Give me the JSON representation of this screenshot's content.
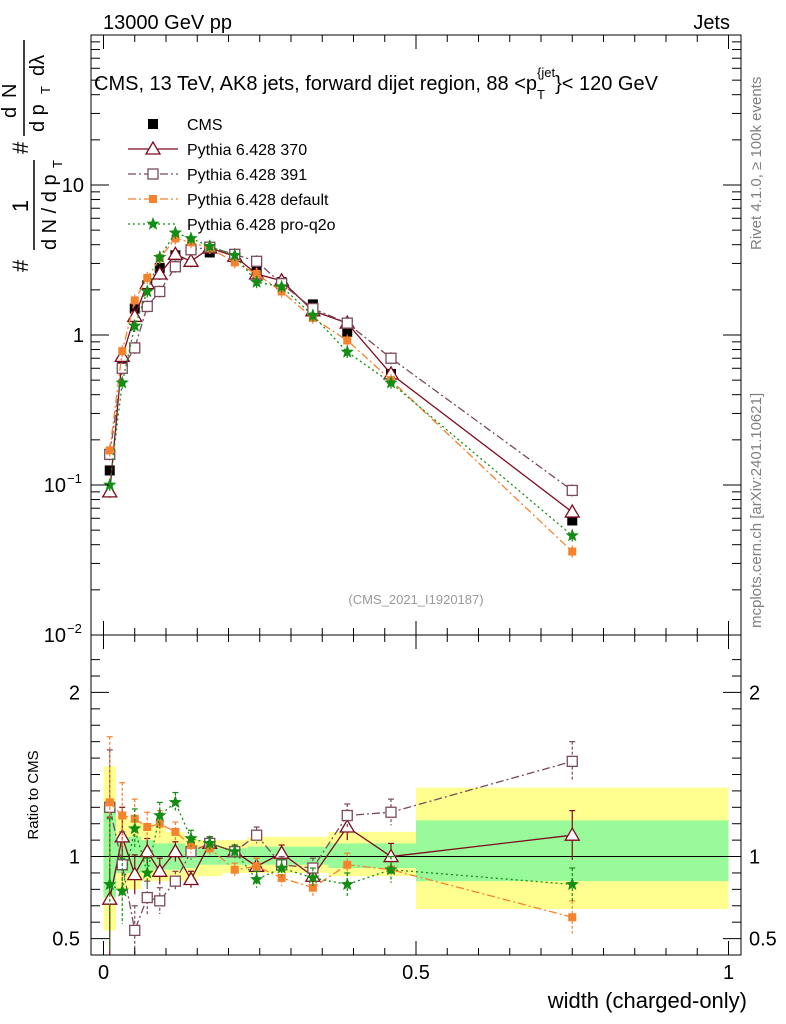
{
  "header": {
    "left": "13000 GeV pp",
    "right": "Jets"
  },
  "side_labels": {
    "rivet": "Rivet 4.1.0, ≥ 100k events",
    "mcplots": "mcplots.cern.ch [arXiv:2401.10621]"
  },
  "chart_data": {
    "type": "line",
    "title": "CMS, 13 TeV, AK8 jets, forward dijet region, 88 <p_T^{jet}< 120 GeV",
    "title_parts": {
      "prefix": "CMS, 13 TeV, AK8 jets, forward dijet region, 88 <p",
      "sub": "T",
      "sup": "{jet",
      "suffix": "}< 120 GeV"
    },
    "analysis_id": "(CMS_2021_I1920187)",
    "xlabel": "width (charged-only)",
    "ylabel_main": "1/dN/dpT  d²N/dpT dλ",
    "ylabel_parts": {
      "top_num": "1",
      "bottom": "d N / d p",
      "sub_T": "T",
      "d2N": "d",
      "N": "N",
      "dpT": "d p",
      "dl": "dλ",
      "hash": "#"
    },
    "ylabel_ratio": "Ratio to CMS",
    "xlim": [
      -0.02,
      1.02
    ],
    "ylim_main": [
      0.01,
      100
    ],
    "ylim_ratio": [
      0.4,
      2.35
    ],
    "x_ticks": [
      "0",
      "0.5",
      "1"
    ],
    "x_tick_values": [
      0,
      0.5,
      1
    ],
    "y_ticks_main": [
      {
        "value": 10,
        "label": "10"
      },
      {
        "value": 1,
        "label": "1"
      },
      {
        "value": 0.1,
        "label": "10",
        "exp": "−1"
      },
      {
        "value": 0.01,
        "label": "10",
        "exp": "−2"
      }
    ],
    "y_ticks_ratio": [
      {
        "value": 2,
        "label": "2"
      },
      {
        "value": 1,
        "label": "1"
      },
      {
        "value": 0.5,
        "label": "0.5"
      }
    ],
    "x_bins": [
      0.0,
      0.02,
      0.04,
      0.06,
      0.08,
      0.1,
      0.13,
      0.15,
      0.19,
      0.23,
      0.26,
      0.31,
      0.36,
      0.42,
      0.5,
      1.0
    ],
    "x_centers": [
      0.01,
      0.03,
      0.05,
      0.07,
      0.09,
      0.115,
      0.14,
      0.17,
      0.21,
      0.245,
      0.285,
      0.335,
      0.39,
      0.46,
      0.75
    ],
    "band_outer": [
      [
        0.55,
        1.55
      ],
      [
        0.8,
        1.25
      ],
      [
        0.8,
        1.22
      ],
      [
        0.85,
        1.2
      ],
      [
        0.85,
        1.18
      ],
      [
        0.85,
        1.15
      ],
      [
        0.85,
        1.12
      ],
      [
        0.88,
        1.1
      ],
      [
        0.9,
        1.1
      ],
      [
        0.9,
        1.12
      ],
      [
        0.9,
        1.12
      ],
      [
        0.9,
        1.12
      ],
      [
        0.88,
        1.15
      ],
      [
        0.88,
        1.15
      ],
      [
        0.68,
        1.42
      ]
    ],
    "band_inner": [
      [
        0.75,
        1.3
      ],
      [
        0.9,
        1.12
      ],
      [
        0.9,
        1.12
      ],
      [
        0.92,
        1.1
      ],
      [
        0.92,
        1.08
      ],
      [
        0.92,
        1.08
      ],
      [
        0.93,
        1.07
      ],
      [
        0.95,
        1.05
      ],
      [
        0.95,
        1.05
      ],
      [
        0.95,
        1.06
      ],
      [
        0.95,
        1.06
      ],
      [
        0.95,
        1.06
      ],
      [
        0.93,
        1.08
      ],
      [
        0.93,
        1.08
      ],
      [
        0.85,
        1.22
      ]
    ],
    "series": [
      {
        "name": "CMS",
        "color": "#000000",
        "marker": "square-filled",
        "line": "none",
        "values": [
          0.125,
          0.65,
          1.5,
          2.15,
          2.8,
          3.4,
          3.7,
          3.55,
          3.3,
          2.7,
          2.25,
          1.6,
          1.05,
          0.55,
          0.058
        ]
      },
      {
        "name": "Pythia 6.428 370",
        "color": "#7f0a1e",
        "marker": "triangle-open",
        "line": "solid",
        "values": [
          0.09,
          0.72,
          1.33,
          2.2,
          2.55,
          3.45,
          3.1,
          3.8,
          3.35,
          2.55,
          2.3,
          1.45,
          1.2,
          0.55,
          0.066
        ],
        "ratio": [
          0.74,
          1.12,
          0.89,
          1.03,
          0.91,
          1.03,
          0.86,
          1.08,
          1.03,
          0.94,
          1.02,
          0.88,
          1.18,
          1.0,
          1.13
        ],
        "ratio_err": [
          0.5,
          0.18,
          0.12,
          0.08,
          0.08,
          0.06,
          0.05,
          0.04,
          0.04,
          0.05,
          0.05,
          0.06,
          0.08,
          0.08,
          0.15
        ]
      },
      {
        "name": "Pythia 6.428 391",
        "color": "#7a4a5a",
        "marker": "square-open",
        "line": "dash-dot",
        "values": [
          0.16,
          0.6,
          0.82,
          1.55,
          1.95,
          2.85,
          3.7,
          3.85,
          3.45,
          3.1,
          2.2,
          1.5,
          1.2,
          0.7,
          0.092
        ],
        "ratio": [
          1.3,
          0.95,
          0.55,
          0.75,
          0.73,
          0.85,
          1.03,
          1.08,
          1.03,
          1.13,
          0.95,
          0.93,
          1.25,
          1.27,
          1.58
        ],
        "ratio_err": [
          0.35,
          0.2,
          0.15,
          0.1,
          0.08,
          0.06,
          0.05,
          0.04,
          0.04,
          0.05,
          0.05,
          0.06,
          0.07,
          0.08,
          0.12
        ]
      },
      {
        "name": "Pythia 6.428 default",
        "color": "#f5822d",
        "marker": "square-filled-small",
        "line": "dash-dot",
        "values": [
          0.17,
          0.78,
          1.7,
          2.4,
          3.25,
          4.4,
          4.15,
          3.8,
          3.05,
          2.55,
          1.95,
          1.3,
          0.92,
          0.5,
          0.036
        ],
        "ratio": [
          1.33,
          1.25,
          1.23,
          1.18,
          1.2,
          1.15,
          1.07,
          1.05,
          0.92,
          0.94,
          0.87,
          0.81,
          0.95,
          0.92,
          0.63
        ],
        "ratio_err": [
          0.4,
          0.2,
          0.12,
          0.09,
          0.08,
          0.06,
          0.05,
          0.04,
          0.04,
          0.05,
          0.05,
          0.06,
          0.07,
          0.08,
          0.1
        ]
      },
      {
        "name": "Pythia 6.428 pro-q2o",
        "color": "#138d13",
        "marker": "star",
        "line": "dotted",
        "values": [
          0.1,
          0.48,
          1.15,
          1.95,
          3.3,
          4.8,
          4.4,
          3.9,
          3.4,
          2.25,
          2.1,
          1.35,
          0.77,
          0.48,
          0.046
        ],
        "ratio": [
          0.83,
          0.79,
          1.17,
          0.9,
          1.25,
          1.33,
          1.11,
          1.08,
          1.03,
          0.86,
          0.93,
          0.87,
          0.83,
          0.92,
          0.83
        ],
        "ratio_err": [
          0.4,
          0.2,
          0.12,
          0.09,
          0.08,
          0.06,
          0.05,
          0.04,
          0.04,
          0.05,
          0.05,
          0.06,
          0.07,
          0.08,
          0.1
        ]
      }
    ],
    "legend": [
      "CMS",
      "Pythia 6.428 370",
      "Pythia 6.428 391",
      "Pythia 6.428 default",
      "Pythia 6.428 pro-q2o"
    ],
    "band_colors": {
      "outer": "#ffff8f",
      "inner": "#99fa99"
    }
  }
}
